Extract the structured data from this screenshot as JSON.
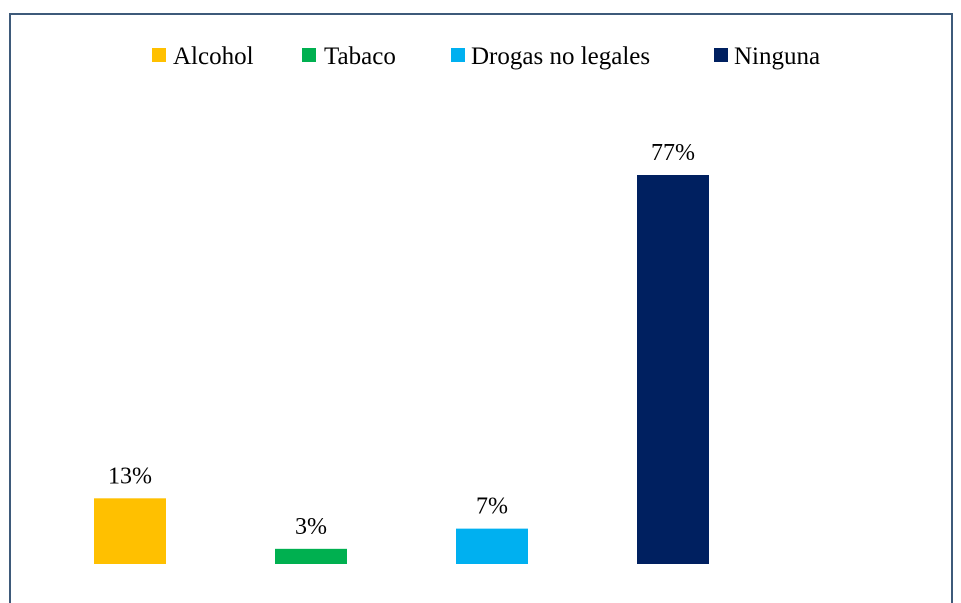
{
  "chart_data": {
    "type": "bar",
    "title": "",
    "xlabel": "",
    "ylabel": "",
    "ylim": [
      0,
      100
    ],
    "grid": false,
    "legend_position": "top",
    "categories": [
      "Alcohol",
      "Tabaco",
      "Drogas no legales",
      "Ninguna"
    ],
    "values": [
      13,
      3,
      7,
      77
    ],
    "data_labels": [
      "13%",
      "3%",
      "7%",
      "77%"
    ],
    "colors": [
      "#ffc000",
      "#00b050",
      "#00b0f0",
      "#002060"
    ]
  }
}
